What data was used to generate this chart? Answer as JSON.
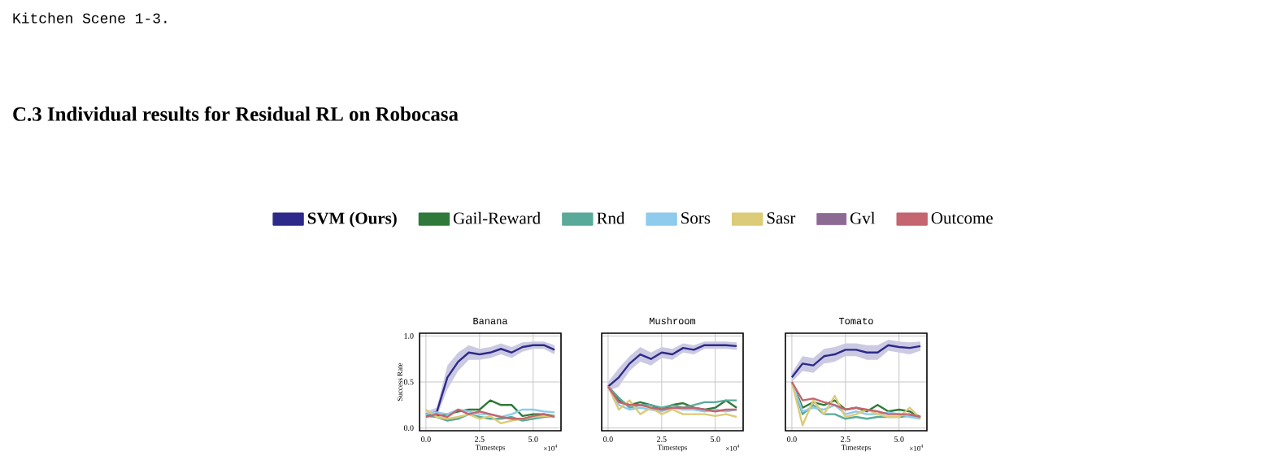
{
  "chart_data": [
    {
      "type": "line",
      "title": "Banana",
      "xlabel": "Timesteps",
      "ylabel": "Success Rate",
      "annotations": [
        "Kitchen Scene 1-3.",
        "C.3 Individual results for Residual RL on Robocasa",
        "×10$^{4}$"
      ],
      "x": [
        0,
        0.5,
        1,
        1.5,
        2,
        2.5,
        3,
        3.5,
        4,
        4.5,
        5,
        5.5,
        6
      ],
      "xlim": [
        -0.3,
        6.3
      ],
      "ylim": [
        -0.03,
        1.03
      ],
      "xticks": [
        {
          "value": 0,
          "label": "0.0"
        },
        {
          "value": 2.5,
          "label": "2.5"
        },
        {
          "value": 5,
          "label": "5.0"
        }
      ],
      "yticks": [
        {
          "value": 0,
          "label": "0.0"
        },
        {
          "value": 0.5,
          "label": "0.5"
        },
        {
          "value": 1,
          "label": "1.0"
        }
      ],
      "grid": true,
      "legend": "top",
      "series": [
        {
          "name": "SVM (Ours)",
          "color": "#2e2a8a",
          "values": [
            0.15,
            0.17,
            0.55,
            0.72,
            0.82,
            0.8,
            0.82,
            0.86,
            0.82,
            0.88,
            0.9,
            0.9,
            0.85
          ],
          "lower": [
            0.12,
            0.12,
            0.42,
            0.62,
            0.74,
            0.74,
            0.76,
            0.8,
            0.76,
            0.83,
            0.86,
            0.86,
            0.8
          ],
          "upper": [
            0.18,
            0.22,
            0.68,
            0.82,
            0.9,
            0.86,
            0.88,
            0.92,
            0.88,
            0.93,
            0.94,
            0.94,
            0.9
          ]
        },
        {
          "name": "Gail-Reward",
          "color": "#2f7a3a",
          "values": [
            0.15,
            0.13,
            0.15,
            0.18,
            0.2,
            0.2,
            0.3,
            0.25,
            0.25,
            0.13,
            0.15,
            0.15,
            0.13
          ]
        },
        {
          "name": "Rnd",
          "color": "#5aaa9a",
          "values": [
            0.13,
            0.12,
            0.08,
            0.1,
            0.15,
            0.12,
            0.1,
            0.1,
            0.12,
            0.08,
            0.1,
            0.12,
            0.13
          ]
        },
        {
          "name": "Sors",
          "color": "#8ecbed",
          "values": [
            0.15,
            0.17,
            0.15,
            0.2,
            0.18,
            0.15,
            0.15,
            0.12,
            0.15,
            0.2,
            0.2,
            0.18,
            0.17
          ]
        },
        {
          "name": "Sasr",
          "color": "#dccb77",
          "values": [
            0.2,
            0.12,
            0.1,
            0.12,
            0.15,
            0.1,
            0.13,
            0.05,
            0.08,
            0.1,
            0.12,
            0.13,
            0.13
          ]
        },
        {
          "name": "Gvl",
          "color": "#8c6a94",
          "values": [
            null,
            null,
            null,
            null,
            null,
            null,
            null,
            null,
            null,
            null,
            null,
            null,
            null
          ]
        },
        {
          "name": "Outcome",
          "color": "#c4656f",
          "values": [
            0.12,
            0.15,
            0.12,
            0.2,
            0.15,
            0.18,
            0.15,
            0.12,
            0.1,
            0.1,
            0.13,
            0.15,
            0.12
          ]
        }
      ]
    },
    {
      "type": "line",
      "title": "Mushroom",
      "xlabel": "Timesteps",
      "annotations": [
        "×10$^{4}$"
      ],
      "x": [
        0,
        0.5,
        1,
        1.5,
        2,
        2.5,
        3,
        3.5,
        4,
        4.5,
        5,
        5.5,
        6
      ],
      "xlim": [
        -0.3,
        6.3
      ],
      "ylim": [
        -0.03,
        1.03
      ],
      "xticks": [
        {
          "value": 0,
          "label": "0.0"
        },
        {
          "value": 2.5,
          "label": "2.5"
        },
        {
          "value": 5,
          "label": "5.0"
        }
      ],
      "yticks": [
        {
          "value": 0,
          "label": null
        },
        {
          "value": 0.5,
          "label": null
        },
        {
          "value": 1,
          "label": null
        }
      ],
      "grid": true,
      "tick_labels": "x",
      "series": [
        {
          "color": "#2e2a8a",
          "values": [
            0.45,
            0.55,
            0.7,
            0.8,
            0.75,
            0.82,
            0.8,
            0.87,
            0.85,
            0.9,
            0.9,
            0.9,
            0.89
          ],
          "lower": [
            0.4,
            0.45,
            0.62,
            0.72,
            0.68,
            0.76,
            0.74,
            0.82,
            0.8,
            0.86,
            0.86,
            0.86,
            0.85
          ],
          "upper": [
            0.5,
            0.65,
            0.78,
            0.88,
            0.82,
            0.88,
            0.86,
            0.92,
            0.9,
            0.94,
            0.94,
            0.94,
            0.93
          ]
        },
        {
          "color": "#2f7a3a",
          "values": [
            0.45,
            0.3,
            0.25,
            0.28,
            0.25,
            0.2,
            0.25,
            0.27,
            0.22,
            0.2,
            0.22,
            0.3,
            0.22
          ]
        },
        {
          "color": "#5aaa9a",
          "values": [
            0.45,
            0.33,
            0.22,
            0.25,
            0.25,
            0.22,
            0.25,
            0.22,
            0.25,
            0.28,
            0.28,
            0.3,
            0.3
          ]
        },
        {
          "color": "#8ecbed",
          "values": [
            0.45,
            0.25,
            0.2,
            0.22,
            0.2,
            0.18,
            0.22,
            0.2,
            0.2,
            0.18,
            0.2,
            0.18,
            0.2
          ]
        },
        {
          "color": "#dccb77",
          "values": [
            0.45,
            0.2,
            0.3,
            0.15,
            0.22,
            0.15,
            0.2,
            0.15,
            0.15,
            0.15,
            0.13,
            0.15,
            0.12
          ]
        },
        {
          "color": "#c4656f",
          "values": [
            0.45,
            0.28,
            0.25,
            0.25,
            0.22,
            0.2,
            0.22,
            0.22,
            0.22,
            0.2,
            0.18,
            0.2,
            0.2
          ]
        }
      ]
    },
    {
      "type": "line",
      "title": "Tomato",
      "xlabel": "Timesteps",
      "annotations": [
        "×10$^{4}$"
      ],
      "x": [
        0,
        0.5,
        1,
        1.5,
        2,
        2.5,
        3,
        3.5,
        4,
        4.5,
        5,
        5.5,
        6
      ],
      "xlim": [
        -0.3,
        6.3
      ],
      "ylim": [
        -0.03,
        1.03
      ],
      "xticks": [
        {
          "value": 0,
          "label": "0.0"
        },
        {
          "value": 2.5,
          "label": "2.5"
        },
        {
          "value": 5,
          "label": "5.0"
        }
      ],
      "yticks": [
        {
          "value": 0,
          "label": null
        },
        {
          "value": 0.5,
          "label": null
        },
        {
          "value": 1,
          "label": null
        }
      ],
      "grid": true,
      "tick_labels": "x",
      "series": [
        {
          "color": "#2e2a8a",
          "values": [
            0.55,
            0.7,
            0.68,
            0.78,
            0.8,
            0.85,
            0.85,
            0.82,
            0.82,
            0.9,
            0.88,
            0.87,
            0.89
          ],
          "lower": [
            0.5,
            0.62,
            0.6,
            0.7,
            0.72,
            0.78,
            0.78,
            0.74,
            0.74,
            0.84,
            0.82,
            0.8,
            0.84
          ],
          "upper": [
            0.6,
            0.78,
            0.76,
            0.86,
            0.88,
            0.92,
            0.92,
            0.9,
            0.9,
            0.96,
            0.94,
            0.93,
            0.94
          ]
        },
        {
          "color": "#2f7a3a",
          "values": [
            0.5,
            0.22,
            0.28,
            0.25,
            0.3,
            0.2,
            0.22,
            0.18,
            0.25,
            0.18,
            0.2,
            0.18,
            0.12
          ]
        },
        {
          "color": "#5aaa9a",
          "values": [
            0.5,
            0.15,
            0.25,
            0.15,
            0.15,
            0.1,
            0.12,
            0.1,
            0.12,
            0.12,
            0.12,
            0.13,
            0.12
          ]
        },
        {
          "color": "#8ecbed",
          "values": [
            0.5,
            0.18,
            0.22,
            0.2,
            0.25,
            0.15,
            0.18,
            0.15,
            0.15,
            0.17,
            0.15,
            0.12,
            0.1
          ]
        },
        {
          "color": "#dccb77",
          "values": [
            0.5,
            0.03,
            0.3,
            0.15,
            0.35,
            0.12,
            0.15,
            0.2,
            0.15,
            0.12,
            0.12,
            0.22,
            0.1
          ]
        },
        {
          "color": "#c4656f",
          "values": [
            0.5,
            0.3,
            0.32,
            0.28,
            0.25,
            0.2,
            0.22,
            0.2,
            0.18,
            0.15,
            0.15,
            0.15,
            0.12
          ]
        }
      ]
    }
  ]
}
